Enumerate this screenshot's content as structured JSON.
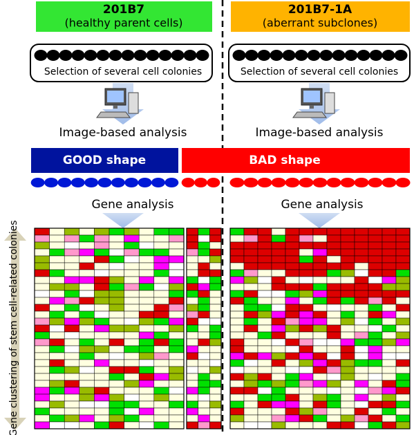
{
  "left": {
    "title": "201B7",
    "subtitle": "(healthy parent cells)",
    "selection": "Selection of several cell colonies",
    "analysis": "Image-based analysis",
    "good": "GOOD shape",
    "bad": "BAD shape",
    "gene": "Gene analysis"
  },
  "right": {
    "title": "201B7-1A",
    "subtitle": "(aberrant subclones)",
    "selection": "Selection of several cell colonies",
    "analysis": "Image-based analysis",
    "bad": "BAD shape",
    "gene": "Gene analysis"
  },
  "axis_label": "Gene clustering of stem cell-related colonies"
}
